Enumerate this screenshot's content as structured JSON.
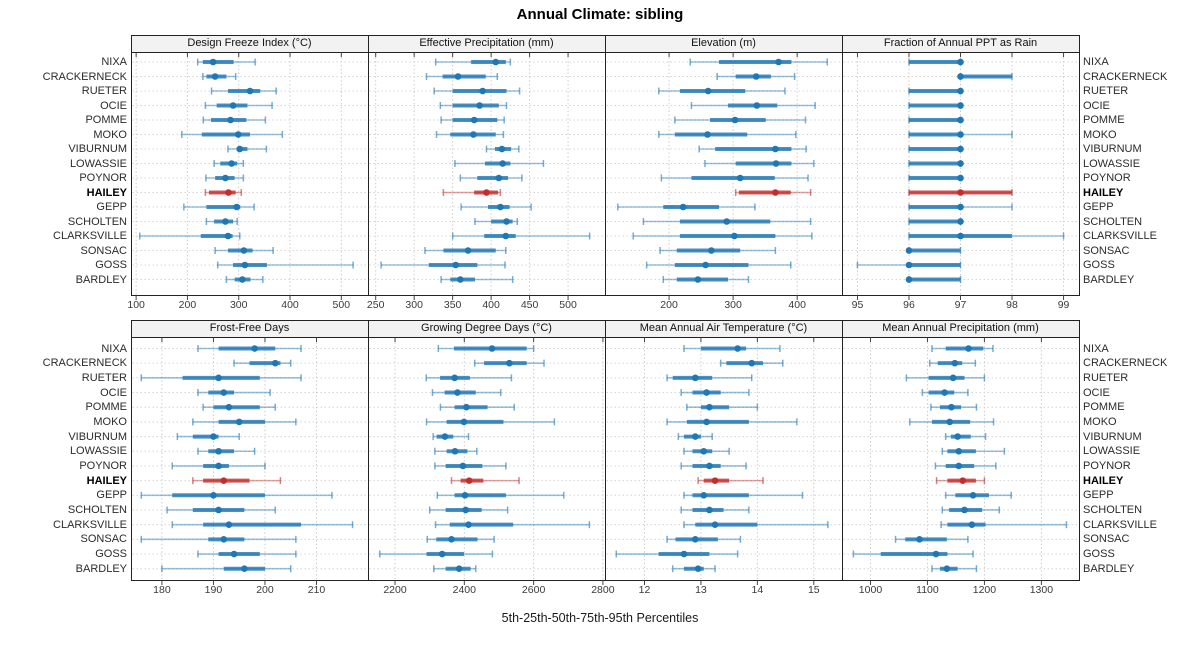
{
  "title": "Annual Climate: sibling",
  "caption": "5th-25th-50th-75th-95th Percentiles",
  "highlight_site": "HAILEY",
  "colors": {
    "series_blue": "#1f77b4",
    "highlight_red": "#c22e2e",
    "strip_bg": "#f2f2f2",
    "panel_border": "#222222",
    "grid": "#cccccc",
    "tick_text": "#3a3a3a",
    "label_text": "#2b2b2b"
  },
  "chart_data": {
    "type": "scatter",
    "subtype": "trellis percentile interval plot (5th-25th-50th-75th-95th percentiles per site)",
    "legend_position": "none",
    "grid": "dotted",
    "sites": [
      "NIXA",
      "CRACKERNECK",
      "RUETER",
      "OCIE",
      "POMME",
      "MOKO",
      "VIBURNUM",
      "LOWASSIE",
      "POYNOR",
      "HAILEY",
      "GEPP",
      "SCHOLTEN",
      "CLARKSVILLE",
      "SONSAC",
      "GOSS",
      "BARDLEY"
    ],
    "panels": [
      {
        "title": "Design Freeze Index (°C)",
        "xlim": [
          90,
          552
        ],
        "ticks": [
          100,
          200,
          300,
          400,
          500
        ],
        "values": [
          [
            220,
            230,
            250,
            290,
            332
          ],
          [
            230,
            237,
            254,
            276,
            294
          ],
          [
            247,
            279,
            322,
            342,
            373
          ],
          [
            235,
            257,
            289,
            317,
            365
          ],
          [
            231,
            246,
            284,
            315,
            352
          ],
          [
            189,
            228,
            299,
            322,
            385
          ],
          [
            279,
            296,
            302,
            317,
            354
          ],
          [
            252,
            264,
            286,
            297,
            309
          ],
          [
            236,
            254,
            274,
            292,
            309
          ],
          [
            235,
            242,
            280,
            294,
            305
          ],
          [
            193,
            237,
            296,
            303,
            330
          ],
          [
            237,
            252,
            274,
            289,
            297
          ],
          [
            107,
            226,
            279,
            288,
            302
          ],
          [
            254,
            279,
            310,
            327,
            367
          ],
          [
            259,
            289,
            312,
            355,
            523
          ],
          [
            276,
            292,
            307,
            323,
            347
          ]
        ]
      },
      {
        "title": "Effective Precipitation (mm)",
        "xlim": [
          240,
          548
        ],
        "ticks": [
          250,
          300,
          350,
          400,
          450,
          500
        ],
        "values": [
          [
            328,
            374,
            406,
            419,
            425
          ],
          [
            316,
            337,
            357,
            393,
            408
          ],
          [
            326,
            350,
            389,
            420,
            437
          ],
          [
            334,
            350,
            385,
            410,
            420
          ],
          [
            335,
            350,
            378,
            408,
            417
          ],
          [
            329,
            347,
            377,
            406,
            416
          ],
          [
            394,
            405,
            414,
            426,
            436
          ],
          [
            353,
            392,
            415,
            425,
            468
          ],
          [
            360,
            382,
            410,
            422,
            440
          ],
          [
            338,
            378,
            394,
            409,
            412
          ],
          [
            361,
            396,
            412,
            424,
            452
          ],
          [
            379,
            400,
            420,
            428,
            434
          ],
          [
            350,
            391,
            419,
            432,
            528
          ],
          [
            314,
            338,
            370,
            406,
            419
          ],
          [
            257,
            319,
            354,
            382,
            418
          ],
          [
            335,
            347,
            360,
            379,
            428
          ]
        ]
      },
      {
        "title": "Elevation (m)",
        "xlim": [
          100,
          470
        ],
        "ticks": [
          200,
          300,
          400
        ],
        "values": [
          [
            233,
            278,
            371,
            391,
            447
          ],
          [
            275,
            304,
            336,
            359,
            396
          ],
          [
            184,
            217,
            261,
            319,
            381
          ],
          [
            235,
            292,
            337,
            369,
            428
          ],
          [
            209,
            264,
            303,
            351,
            413
          ],
          [
            184,
            209,
            260,
            322,
            398
          ],
          [
            247,
            272,
            366,
            391,
            414
          ],
          [
            256,
            304,
            367,
            391,
            426
          ],
          [
            188,
            235,
            311,
            365,
            417
          ],
          [
            304,
            309,
            366,
            390,
            421
          ],
          [
            120,
            191,
            222,
            278,
            334
          ],
          [
            160,
            217,
            290,
            358,
            421
          ],
          [
            144,
            217,
            302,
            366,
            423
          ],
          [
            186,
            212,
            266,
            311,
            366
          ],
          [
            165,
            209,
            257,
            324,
            390
          ],
          [
            191,
            212,
            245,
            292,
            324
          ]
        ]
      },
      {
        "title": "Fraction of Annual PPT as Rain",
        "xlim": [
          94.7,
          99.3
        ],
        "ticks": [
          95,
          96,
          97,
          98,
          99
        ],
        "values": [
          [
            96,
            96,
            97,
            97,
            97
          ],
          [
            97,
            97,
            97,
            98,
            98
          ],
          [
            96,
            96,
            97,
            97,
            97
          ],
          [
            96,
            96,
            97,
            97,
            97
          ],
          [
            96,
            96,
            97,
            97,
            97
          ],
          [
            96,
            96,
            97,
            97,
            98
          ],
          [
            96,
            96,
            97,
            97,
            97
          ],
          [
            96,
            96,
            97,
            97,
            97
          ],
          [
            96,
            96,
            97,
            97,
            97
          ],
          [
            96,
            96,
            97,
            98,
            98
          ],
          [
            96,
            96,
            97,
            97,
            98
          ],
          [
            96,
            96,
            97,
            97,
            97
          ],
          [
            96,
            96,
            97,
            98,
            99
          ],
          [
            96,
            96,
            96,
            97,
            97
          ],
          [
            95,
            96,
            96,
            97,
            97
          ],
          [
            96,
            96,
            96,
            97,
            97
          ]
        ]
      },
      {
        "title": "Frost-Free Days",
        "xlim": [
          174,
          220
        ],
        "ticks": [
          180,
          190,
          200,
          210
        ],
        "values": [
          [
            187,
            191,
            198,
            202,
            207
          ],
          [
            194,
            197,
            202,
            203,
            205
          ],
          [
            176,
            184,
            191,
            199,
            207
          ],
          [
            187,
            189,
            192,
            194,
            201
          ],
          [
            188,
            190,
            193,
            199,
            202
          ],
          [
            186,
            191,
            195,
            200,
            206
          ],
          [
            183,
            186,
            190,
            191,
            195
          ],
          [
            187,
            189,
            191,
            194,
            198
          ],
          [
            182,
            188,
            191,
            193,
            200
          ],
          [
            186,
            188,
            192,
            197,
            203
          ],
          [
            176,
            182,
            190,
            200,
            213
          ],
          [
            181,
            186,
            191,
            196,
            202
          ],
          [
            182,
            188,
            193,
            207,
            217
          ],
          [
            176,
            189,
            192,
            196,
            206
          ],
          [
            187,
            191,
            194,
            199,
            206
          ],
          [
            180,
            192,
            196,
            200,
            205
          ]
        ]
      },
      {
        "title": "Growing Degree Days (°C)",
        "xlim": [
          2122,
          2806
        ],
        "ticks": [
          2200,
          2400,
          2600,
          2800
        ],
        "values": [
          [
            2325,
            2370,
            2480,
            2580,
            2600
          ],
          [
            2430,
            2457,
            2530,
            2580,
            2630
          ],
          [
            2290,
            2330,
            2372,
            2416,
            2536
          ],
          [
            2308,
            2343,
            2380,
            2433,
            2505
          ],
          [
            2331,
            2372,
            2406,
            2467,
            2544
          ],
          [
            2291,
            2349,
            2399,
            2513,
            2660
          ],
          [
            2310,
            2320,
            2344,
            2368,
            2412
          ],
          [
            2315,
            2349,
            2373,
            2409,
            2436
          ],
          [
            2315,
            2346,
            2396,
            2452,
            2520
          ],
          [
            2363,
            2389,
            2414,
            2455,
            2558
          ],
          [
            2322,
            2372,
            2402,
            2520,
            2687
          ],
          [
            2300,
            2346,
            2404,
            2450,
            2525
          ],
          [
            2317,
            2358,
            2412,
            2541,
            2761
          ],
          [
            2293,
            2319,
            2363,
            2438,
            2486
          ],
          [
            2156,
            2291,
            2336,
            2399,
            2481
          ],
          [
            2312,
            2346,
            2385,
            2418,
            2433
          ]
        ]
      },
      {
        "title": "Mean Annual Air Temperature (°C)",
        "xlim": [
          11.3,
          15.5
        ],
        "ticks": [
          12,
          13,
          14,
          15
        ],
        "values": [
          [
            12.7,
            13.0,
            13.65,
            13.8,
            14.4
          ],
          [
            13.35,
            13.45,
            13.9,
            14.1,
            14.45
          ],
          [
            12.4,
            12.5,
            12.9,
            13.2,
            13.9
          ],
          [
            12.65,
            12.85,
            13.1,
            13.35,
            13.85
          ],
          [
            12.75,
            13.0,
            13.15,
            13.5,
            14.0
          ],
          [
            12.4,
            12.75,
            13.1,
            13.85,
            14.7
          ],
          [
            12.6,
            12.7,
            12.9,
            13.0,
            13.2
          ],
          [
            12.7,
            12.85,
            13.05,
            13.2,
            13.5
          ],
          [
            12.65,
            12.85,
            13.15,
            13.35,
            13.8
          ],
          [
            12.95,
            13.05,
            13.25,
            13.5,
            14.1
          ],
          [
            12.7,
            12.85,
            13.05,
            13.85,
            14.8
          ],
          [
            12.65,
            12.85,
            13.15,
            13.4,
            13.85
          ],
          [
            12.7,
            12.9,
            13.25,
            14.0,
            15.25
          ],
          [
            12.4,
            12.55,
            12.9,
            13.3,
            13.7
          ],
          [
            11.5,
            12.25,
            12.7,
            13.15,
            13.65
          ],
          [
            12.5,
            12.7,
            12.95,
            13.05,
            13.25
          ]
        ]
      },
      {
        "title": "Mean Annual Precipitation (mm)",
        "xlim": [
          950,
          1366
        ],
        "ticks": [
          1000,
          1100,
          1200,
          1300
        ],
        "values": [
          [
            1108,
            1132,
            1172,
            1198,
            1215
          ],
          [
            1104,
            1118,
            1148,
            1161,
            1184
          ],
          [
            1063,
            1102,
            1145,
            1165,
            1200
          ],
          [
            1091,
            1102,
            1130,
            1147,
            1171
          ],
          [
            1106,
            1122,
            1142,
            1159,
            1186
          ],
          [
            1069,
            1108,
            1139,
            1175,
            1216
          ],
          [
            1132,
            1141,
            1153,
            1176,
            1202
          ],
          [
            1126,
            1135,
            1155,
            1185,
            1235
          ],
          [
            1114,
            1132,
            1155,
            1182,
            1220
          ],
          [
            1116,
            1135,
            1162,
            1185,
            1200
          ],
          [
            1132,
            1149,
            1180,
            1208,
            1247
          ],
          [
            1126,
            1138,
            1165,
            1196,
            1226
          ],
          [
            1124,
            1135,
            1178,
            1202,
            1344
          ],
          [
            1044,
            1061,
            1086,
            1134,
            1171
          ],
          [
            970,
            1018,
            1115,
            1135,
            1180
          ],
          [
            1108,
            1122,
            1134,
            1153,
            1186
          ]
        ]
      }
    ]
  }
}
